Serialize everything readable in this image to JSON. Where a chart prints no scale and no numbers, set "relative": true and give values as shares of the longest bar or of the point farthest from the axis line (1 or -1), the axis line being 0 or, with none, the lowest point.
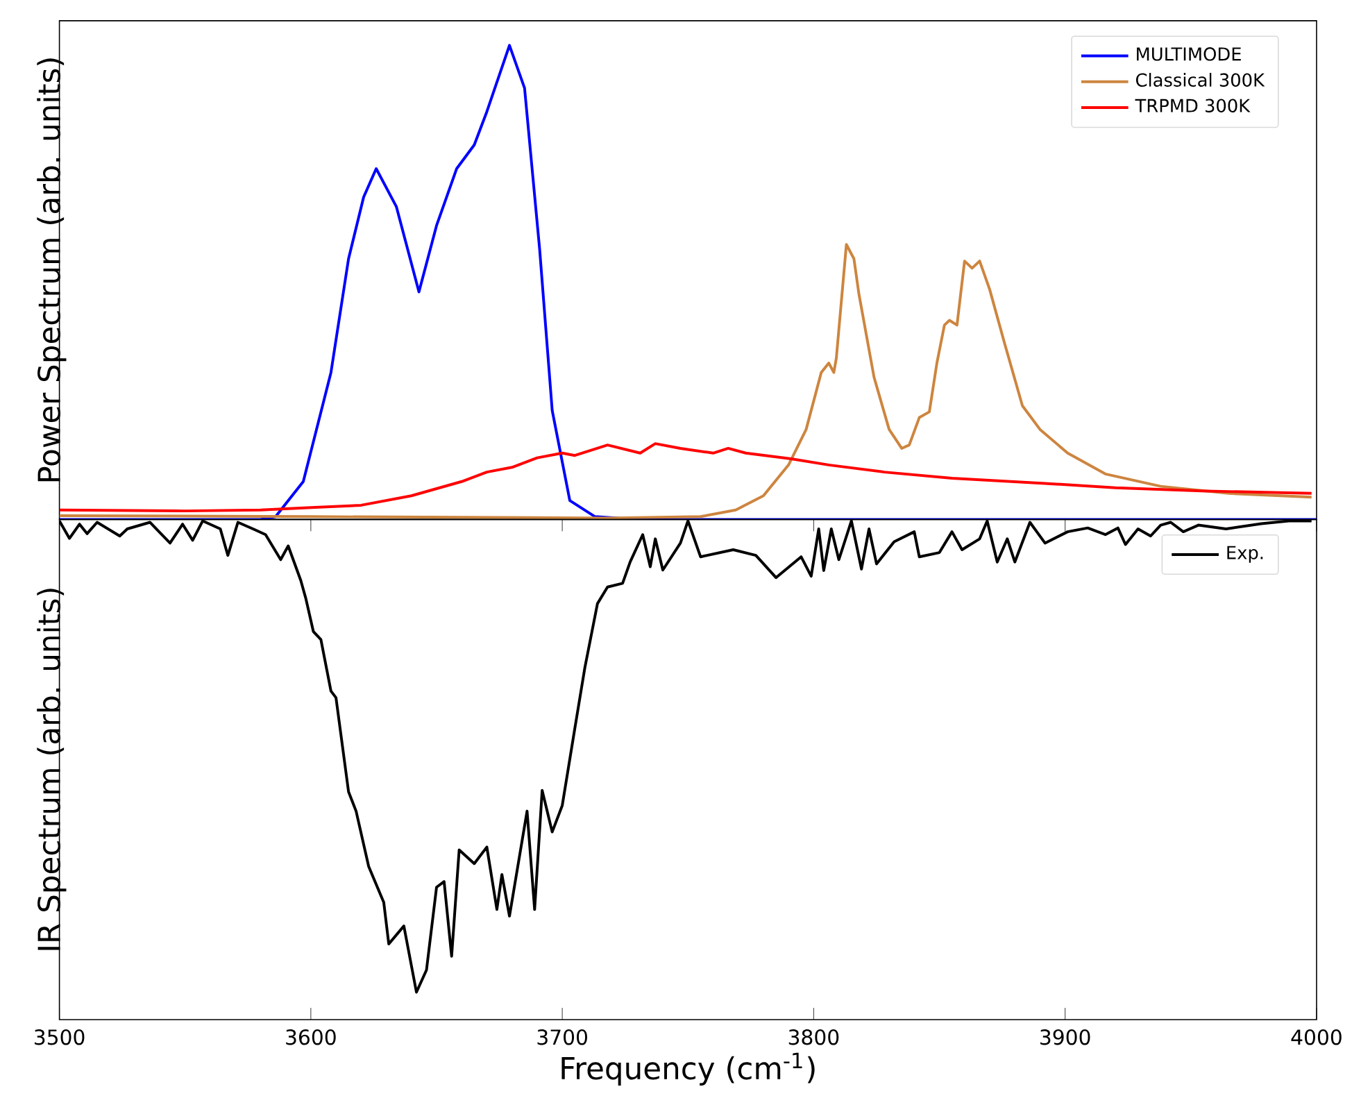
{
  "chart_data": [
    {
      "type": "line",
      "ylabel": "Power Spectrum (arb. units)",
      "relative": true,
      "xlim": [
        3500,
        4000
      ],
      "xticks": [
        3500,
        3600,
        3700,
        3800,
        3900,
        4000
      ],
      "tick_labels": false,
      "legend": "top right",
      "series": [
        {
          "name": "MULTIMODE",
          "color": "#0000ff",
          "x": [
            3500,
            3580,
            3586,
            3597,
            3608,
            3615,
            3621,
            3626,
            3634,
            3643,
            3650,
            3658,
            3665,
            3670,
            3679,
            3685,
            3691,
            3696,
            3703,
            3713,
            3730,
            4000
          ],
          "values": [
            0,
            0,
            0.006,
            0.08,
            0.31,
            0.55,
            0.68,
            0.74,
            0.66,
            0.48,
            0.62,
            0.74,
            0.79,
            0.86,
            1.0,
            0.91,
            0.57,
            0.23,
            0.04,
            0.006,
            0,
            0
          ]
        },
        {
          "name": "Classical 300K",
          "color": "#cd853f",
          "x": [
            3500,
            3600,
            3718,
            3755,
            3769,
            3780,
            3790,
            3797,
            3803,
            3806,
            3808,
            3809,
            3813,
            3816,
            3818,
            3824,
            3830,
            3835,
            3838,
            3842,
            3846,
            3849,
            3852,
            3854,
            3857,
            3860,
            3863,
            3866,
            3870,
            3876,
            3883,
            3890,
            3901,
            3916,
            3938,
            3965,
            3998
          ],
          "values": [
            0.008,
            0.006,
            0.003,
            0.006,
            0.02,
            0.05,
            0.115,
            0.19,
            0.31,
            0.33,
            0.31,
            0.34,
            0.58,
            0.55,
            0.475,
            0.3,
            0.19,
            0.15,
            0.157,
            0.215,
            0.227,
            0.33,
            0.41,
            0.42,
            0.41,
            0.545,
            0.53,
            0.545,
            0.485,
            0.37,
            0.24,
            0.19,
            0.14,
            0.096,
            0.07,
            0.055,
            0.047
          ]
        },
        {
          "name": "TRPMD 300K",
          "color": "#ff0000",
          "x": [
            3500,
            3550,
            3580,
            3600,
            3620,
            3640,
            3660,
            3670,
            3680,
            3690,
            3700,
            3705,
            3718,
            3731,
            3737,
            3747,
            3760,
            3766,
            3773,
            3791,
            3806,
            3828,
            3855,
            3892,
            3920,
            3956,
            3998
          ],
          "values": [
            0.02,
            0.018,
            0.02,
            0.025,
            0.03,
            0.05,
            0.08,
            0.1,
            0.11,
            0.13,
            0.14,
            0.135,
            0.157,
            0.14,
            0.16,
            0.15,
            0.14,
            0.15,
            0.14,
            0.128,
            0.115,
            0.1,
            0.087,
            0.076,
            0.067,
            0.06,
            0.055
          ]
        }
      ]
    },
    {
      "type": "line",
      "ylabel": "IR Spectrum (arb. units)",
      "xlabel": "Frequency (cm$^{-1}$)",
      "relative": true,
      "xlim": [
        3500,
        4000
      ],
      "xticks": [
        3500,
        3600,
        3700,
        3800,
        3900,
        4000
      ],
      "tick_labels": "x",
      "legend": "top right",
      "series": [
        {
          "name": "Exp.",
          "color": "#000000",
          "x": [
            3500,
            3504,
            3508,
            3511,
            3515,
            3524,
            3527,
            3536,
            3544,
            3549,
            3553,
            3557,
            3564,
            3567,
            3571,
            3577,
            3582,
            3588,
            3591,
            3596,
            3598,
            3601,
            3604,
            3608,
            3610,
            3615,
            3618,
            3623,
            3629,
            3631,
            3637,
            3642,
            3646,
            3650,
            3653,
            3656,
            3659,
            3665,
            3670,
            3674,
            3676,
            3679,
            3686,
            3689,
            3692,
            3696,
            3700,
            3705,
            3709,
            3714,
            3718,
            3724,
            3727,
            3732,
            3735,
            3737,
            3740,
            3747,
            3750,
            3755,
            3768,
            3777,
            3785,
            3795,
            3799,
            3802,
            3804,
            3807,
            3810,
            3815,
            3819,
            3822,
            3825,
            3832,
            3840,
            3842,
            3850,
            3855,
            3859,
            3866,
            3869,
            3873,
            3877,
            3880,
            3886,
            3892,
            3901,
            3909,
            3916,
            3921,
            3924,
            3929,
            3934,
            3938,
            3942,
            3947,
            3953,
            3964,
            3978,
            3989,
            3998
          ],
          "values": [
            -0.003,
            -0.04,
            -0.01,
            -0.03,
            -0.006,
            -0.035,
            -0.02,
            -0.006,
            -0.05,
            -0.01,
            -0.044,
            -0.003,
            -0.02,
            -0.076,
            -0.006,
            -0.02,
            -0.032,
            -0.085,
            -0.056,
            -0.129,
            -0.167,
            -0.237,
            -0.254,
            -0.363,
            -0.377,
            -0.576,
            -0.617,
            -0.734,
            -0.81,
            -0.898,
            -0.86,
            -1.0,
            -0.953,
            -0.778,
            -0.766,
            -0.924,
            -0.699,
            -0.728,
            -0.693,
            -0.825,
            -0.751,
            -0.839,
            -0.617,
            -0.825,
            -0.573,
            -0.661,
            -0.605,
            -0.442,
            -0.313,
            -0.178,
            -0.143,
            -0.135,
            -0.09,
            -0.032,
            -0.1,
            -0.041,
            -0.107,
            -0.05,
            -0.003,
            -0.079,
            -0.064,
            -0.076,
            -0.123,
            -0.079,
            -0.12,
            -0.02,
            -0.108,
            -0.02,
            -0.085,
            -0.003,
            -0.105,
            -0.02,
            -0.094,
            -0.047,
            -0.026,
            -0.079,
            -0.07,
            -0.026,
            -0.064,
            -0.041,
            -0.003,
            -0.09,
            -0.041,
            -0.09,
            -0.006,
            -0.05,
            -0.026,
            -0.018,
            -0.032,
            -0.018,
            -0.053,
            -0.02,
            -0.035,
            -0.012,
            -0.006,
            -0.026,
            -0.012,
            -0.02,
            -0.009,
            -0.003,
            -0.003
          ]
        }
      ]
    }
  ]
}
